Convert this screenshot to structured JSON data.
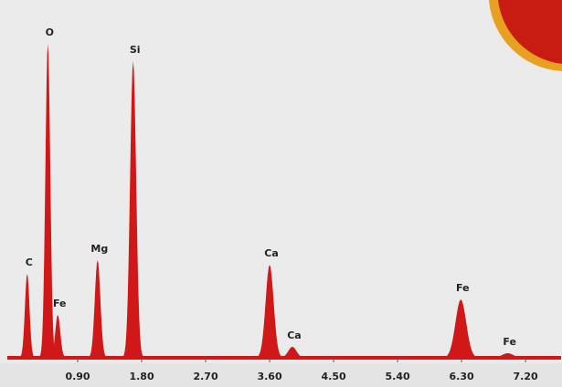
{
  "chart_data": {
    "type": "spectrum",
    "x": [
      0.19,
      0.48,
      0.62,
      1.18,
      1.68,
      3.6,
      3.92,
      6.29,
      6.95
    ],
    "values": [
      92,
      344,
      47,
      107,
      325,
      102,
      12,
      64,
      5
    ],
    "labels": [
      "C",
      "O",
      "Fe",
      "Mg",
      "Si",
      "Ca",
      "Ca",
      "Fe",
      "Fe"
    ],
    "color": "#d01818",
    "xlim": [
      0,
      7.7
    ],
    "ylim": [
      0,
      360
    ],
    "xticks": [
      {
        "value": 0.9,
        "label": "0.90"
      },
      {
        "value": 1.8,
        "label": "1.80"
      },
      {
        "value": 2.7,
        "label": "2.70"
      },
      {
        "value": 3.6,
        "label": "3.60"
      },
      {
        "value": 4.5,
        "label": "4.50"
      },
      {
        "value": 5.4,
        "label": "5.40"
      },
      {
        "value": 6.3,
        "label": "6.30"
      },
      {
        "value": 7.2,
        "label": "7.20"
      }
    ]
  }
}
